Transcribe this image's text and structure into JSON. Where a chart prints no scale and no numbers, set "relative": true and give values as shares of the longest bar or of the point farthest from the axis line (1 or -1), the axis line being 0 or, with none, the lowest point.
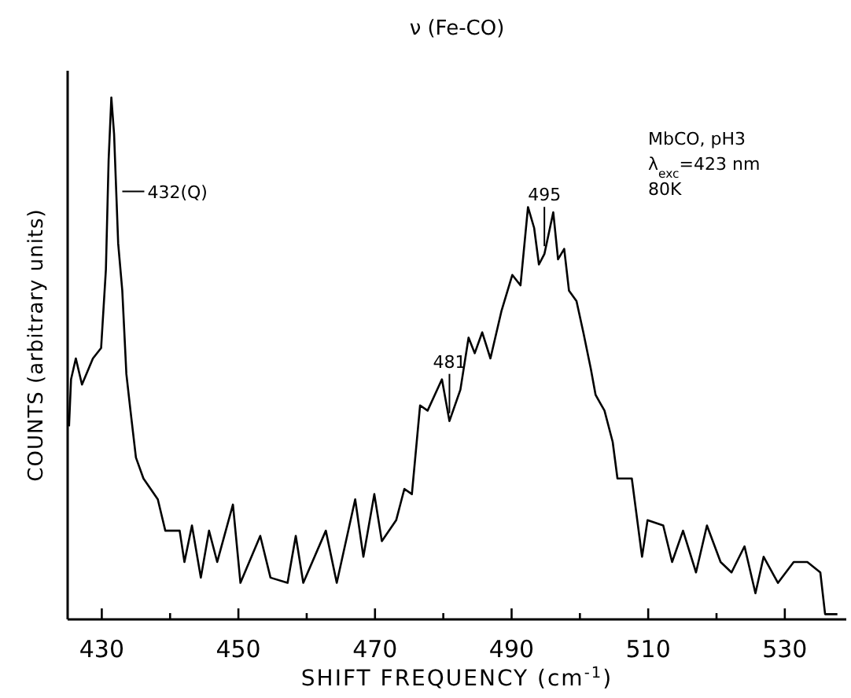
{
  "chart_data": {
    "type": "line",
    "title": "ν (Fe-CO)",
    "xlabel": "SHIFT FREQUENCY (cm$^{-1}$)",
    "ylabel": "COUNTS (arbitrary units)",
    "relative": true,
    "color": "#000000",
    "marker": "none",
    "line_style": "solid",
    "grid": false,
    "xlim": [
      425,
      539
    ],
    "xticks": [
      430,
      {
        "value": 440,
        "label": null
      },
      450,
      {
        "value": 460,
        "label": null
      },
      470,
      {
        "value": 480,
        "label": null
      },
      490,
      {
        "value": 500,
        "label": null
      },
      510,
      {
        "value": 520,
        "label": null
      },
      530
    ],
    "annotations": [
      {
        "text": "432(Q)",
        "x": 433,
        "y": 0.82
      },
      {
        "text": "481",
        "x": 480.9,
        "y": 0.38
      },
      {
        "text": "495",
        "x": 494.8,
        "y": 0.7
      },
      "MbCO, pH3",
      "λ$_{exc}$=423 nm",
      "80K"
    ],
    "x": [
      425.2,
      425.5,
      426.2,
      427.1,
      428.7,
      429.9,
      430.6,
      431.0,
      431.4,
      431.8,
      432.4,
      433.0,
      433.6,
      434.2,
      435.0,
      436.1,
      438.2,
      439.3,
      441.4,
      442.1,
      443.2,
      444.5,
      445.7,
      446.9,
      449.2,
      450.3,
      453.2,
      454.7,
      457.2,
      458.4,
      459.5,
      462.8,
      464.4,
      467.1,
      468.3,
      469.9,
      471.0,
      473.1,
      474.3,
      475.4,
      476.6,
      477.7,
      479.8,
      480.9,
      482.5,
      483.7,
      484.6,
      485.7,
      486.9,
      488.5,
      490.1,
      491.3,
      492.4,
      493.3,
      494.0,
      494.8,
      496.1,
      496.8,
      497.7,
      498.4,
      499.5,
      500.5,
      501.6,
      502.3,
      503.6,
      504.8,
      505.5,
      507.6,
      509.1,
      509.9,
      512.2,
      513.5,
      515.1,
      517.0,
      518.6,
      520.6,
      522.2,
      524.1,
      525.7,
      526.9,
      529.0,
      531.3,
      533.3,
      535.2,
      535.9,
      537.7
    ],
    "values": [
      0.37,
      0.46,
      0.5,
      0.45,
      0.5,
      0.52,
      0.67,
      0.88,
      1.0,
      0.93,
      0.72,
      0.63,
      0.47,
      0.4,
      0.31,
      0.27,
      0.23,
      0.17,
      0.17,
      0.11,
      0.18,
      0.08,
      0.17,
      0.11,
      0.22,
      0.07,
      0.16,
      0.08,
      0.07,
      0.16,
      0.07,
      0.17,
      0.07,
      0.23,
      0.12,
      0.24,
      0.15,
      0.19,
      0.25,
      0.24,
      0.41,
      0.4,
      0.46,
      0.38,
      0.44,
      0.54,
      0.51,
      0.55,
      0.5,
      0.59,
      0.66,
      0.64,
      0.79,
      0.75,
      0.68,
      0.7,
      0.78,
      0.69,
      0.71,
      0.63,
      0.61,
      0.55,
      0.48,
      0.43,
      0.4,
      0.34,
      0.27,
      0.27,
      0.12,
      0.19,
      0.18,
      0.11,
      0.17,
      0.09,
      0.18,
      0.11,
      0.09,
      0.14,
      0.05,
      0.12,
      0.07,
      0.11,
      0.11,
      0.09,
      0.01,
      0.01
    ]
  }
}
